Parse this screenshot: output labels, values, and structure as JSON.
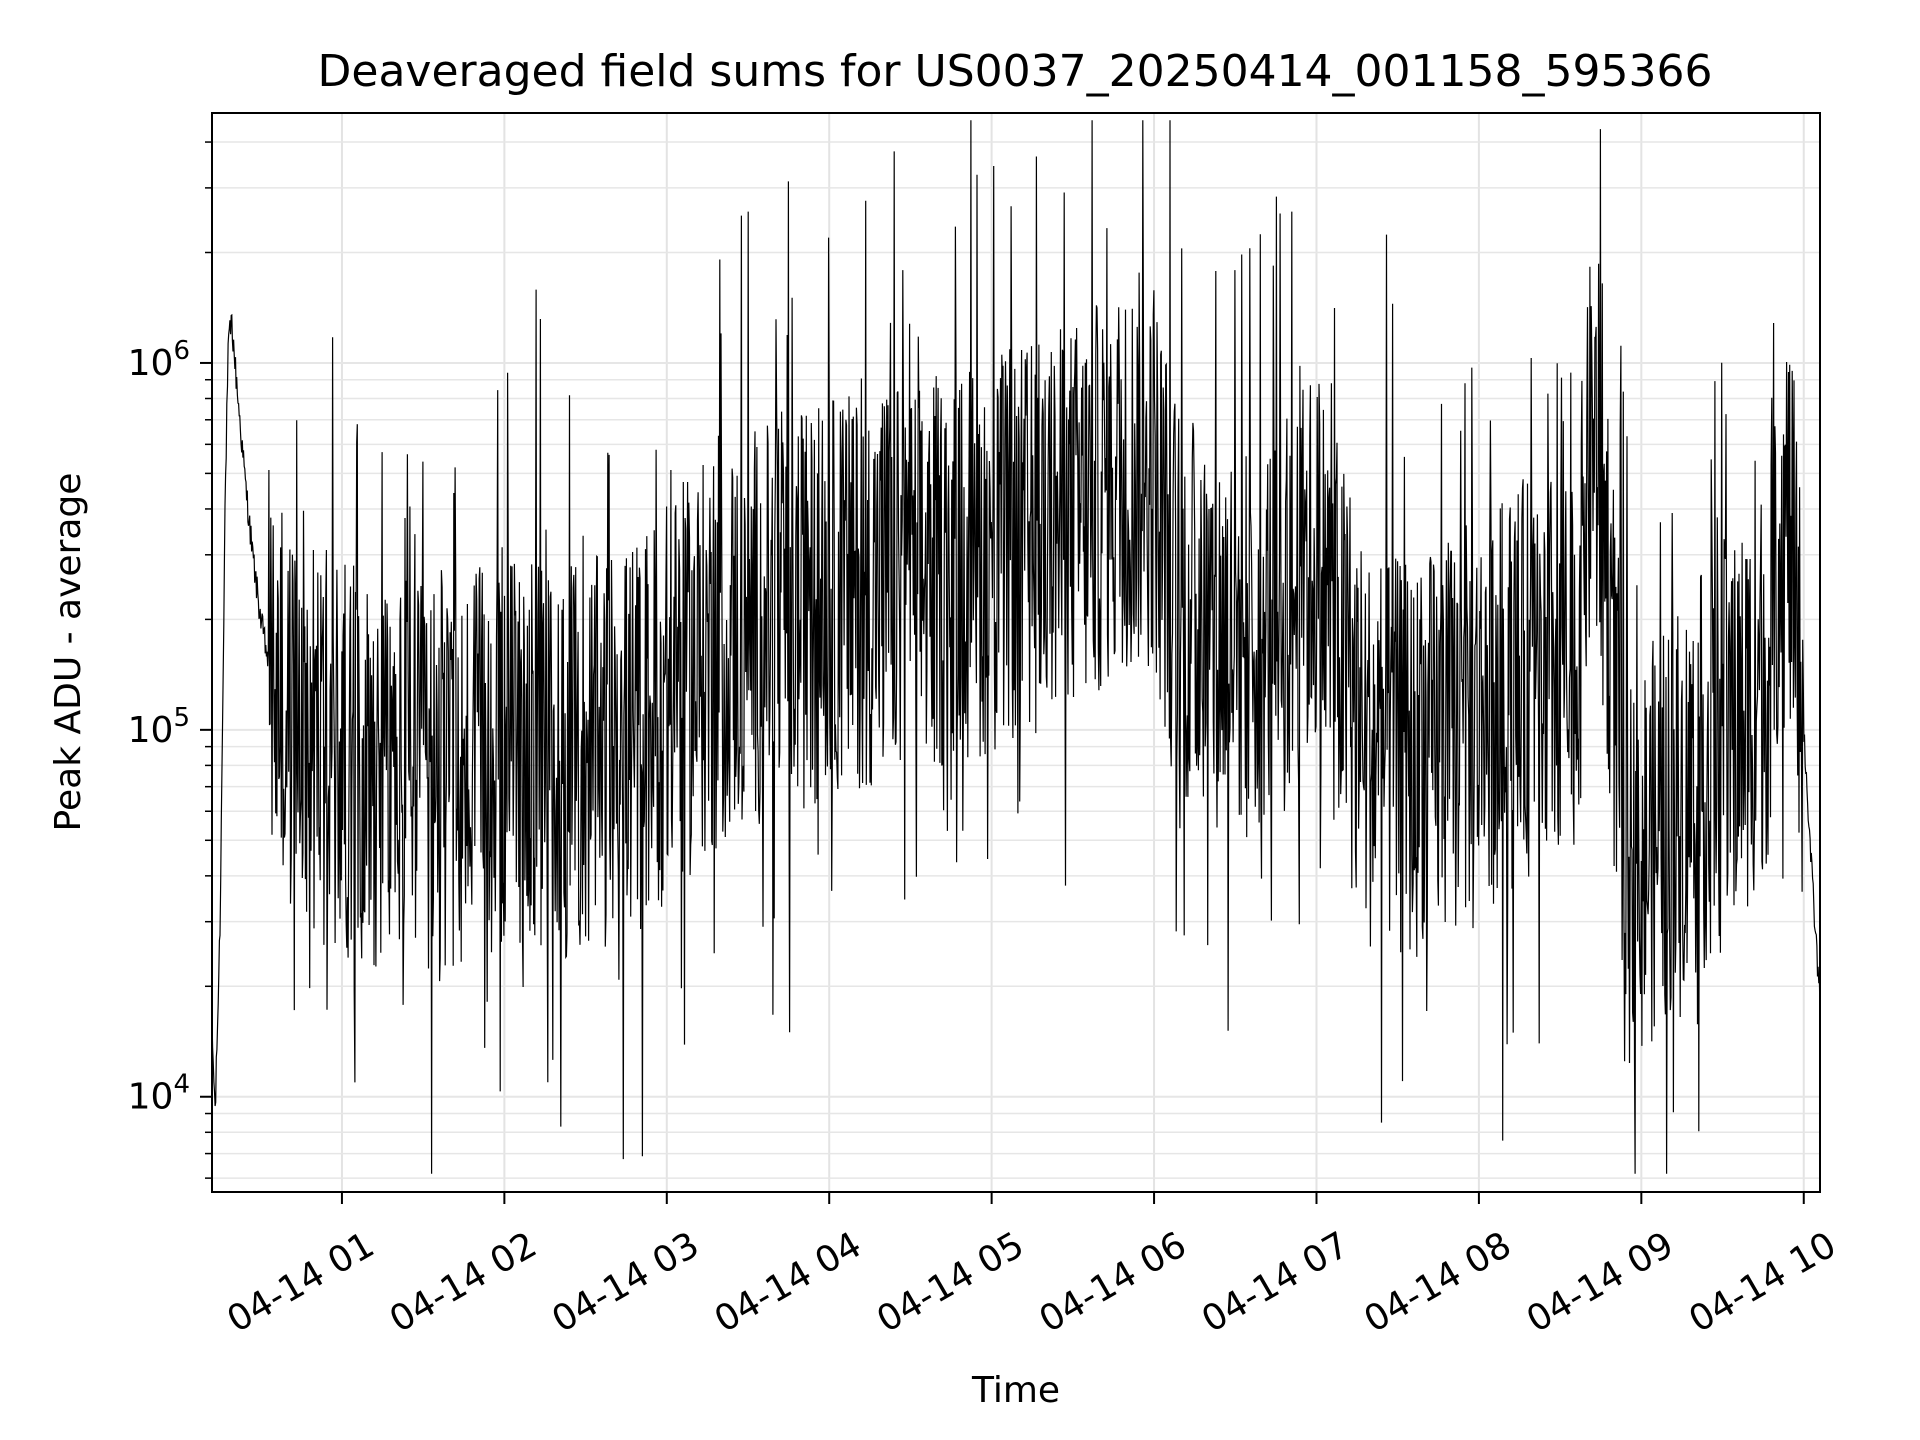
{
  "chart_data": {
    "type": "line",
    "title": "Deaveraged field sums for US0037_20250414_001158_595366",
    "xlabel": "Time",
    "ylabel": "Peak ADU - average",
    "yscale": "log",
    "ylim": [
      5500,
      4800000
    ],
    "xlim_hours": [
      0.2,
      10.1
    ],
    "grid": true,
    "line_color": "#000000",
    "x_tick_labels": [
      "04-14 01",
      "04-14 02",
      "04-14 03",
      "04-14 04",
      "04-14 05",
      "04-14 06",
      "04-14 07",
      "04-14 08",
      "04-14 09",
      "04-14 10"
    ],
    "x_tick_hours": [
      1,
      2,
      3,
      4,
      5,
      6,
      7,
      8,
      9,
      10
    ],
    "y_tick_values": [
      10000,
      100000,
      1000000
    ],
    "y_tick_bases": [
      "10",
      "10",
      "10"
    ],
    "y_tick_exponents": [
      "4",
      "5",
      "6"
    ],
    "series": [
      {
        "x_hours": [
          0.2,
          0.22,
          0.25,
          0.28,
          0.3,
          0.32,
          0.35,
          0.4,
          0.45,
          0.5,
          0.55,
          0.6,
          0.65,
          0.7,
          0.75,
          0.8,
          0.9,
          1.0,
          1.2,
          1.5,
          1.8,
          2.0,
          2.2,
          2.4,
          2.6,
          2.8,
          3.0,
          3.2,
          3.5,
          3.8,
          4.0,
          4.3,
          4.6,
          4.8,
          5.0,
          5.2,
          5.4,
          5.6,
          5.8,
          6.0,
          6.1,
          6.2,
          6.5,
          6.8,
          7.0,
          7.3,
          7.6,
          8.0,
          8.3,
          8.6,
          8.7,
          8.8,
          8.9,
          9.0,
          9.3,
          9.6,
          9.8,
          9.9,
          10.0,
          10.05,
          10.1
        ],
        "y": [
          15000,
          9000,
          30000,
          400000,
          1100000,
          1300000,
          900000,
          500000,
          300000,
          200000,
          150000,
          120000,
          110000,
          100000,
          130000,
          100000,
          90000,
          85000,
          80000,
          70000,
          75000,
          90000,
          85000,
          80000,
          85000,
          95000,
          120000,
          150000,
          190000,
          210000,
          230000,
          250000,
          260000,
          280000,
          300000,
          320000,
          350000,
          400000,
          500000,
          520000,
          280000,
          200000,
          180000,
          200000,
          300000,
          90000,
          80000,
          110000,
          140000,
          150000,
          700000,
          250000,
          40000,
          45000,
          70000,
          100000,
          160000,
          400000,
          100000,
          40000,
          18000
        ]
      }
    ]
  }
}
